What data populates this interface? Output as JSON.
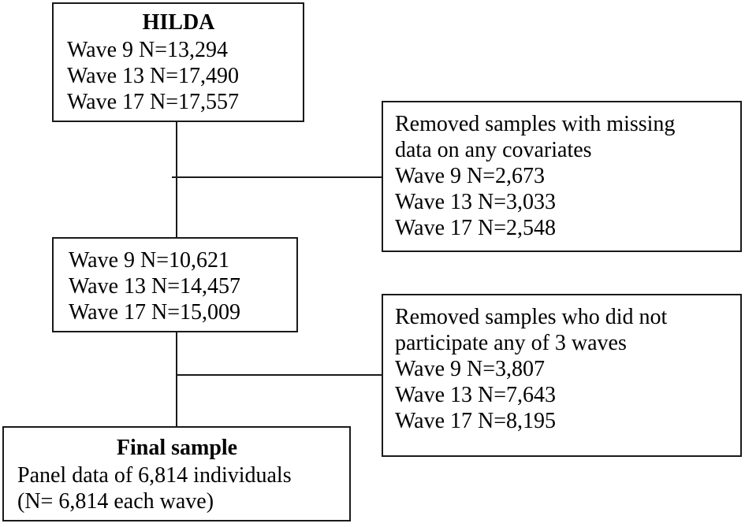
{
  "colors": {
    "background": "#ffffff",
    "line": "#1a1a1a",
    "text": "#000000"
  },
  "boxes": {
    "hilda": {
      "title": "HILDA",
      "lines": [
        "Wave 9 N=13,294",
        "Wave 13 N=17,490",
        "Wave 17 N=17,557"
      ]
    },
    "removed_missing": {
      "lines": [
        "Removed samples with missing",
        "data on any covariates",
        "Wave 9 N=2,673",
        "Wave 13 N=3,033",
        "Wave 17 N=2,548"
      ]
    },
    "after_exclusion": {
      "lines": [
        "Wave 9 N=10,621",
        "Wave 13 N=14,457",
        "Wave 17 N=15,009"
      ]
    },
    "removed_nonparticipation": {
      "lines": [
        "Removed samples who did not",
        "participate any of 3 waves",
        "Wave 9 N=3,807",
        "Wave 13 N=7,643",
        "Wave 17 N=8,195"
      ]
    },
    "final_sample": {
      "title": "Final sample",
      "lines": [
        "Panel data of 6,814 individuals",
        "(N= 6,814 each wave)"
      ]
    }
  }
}
